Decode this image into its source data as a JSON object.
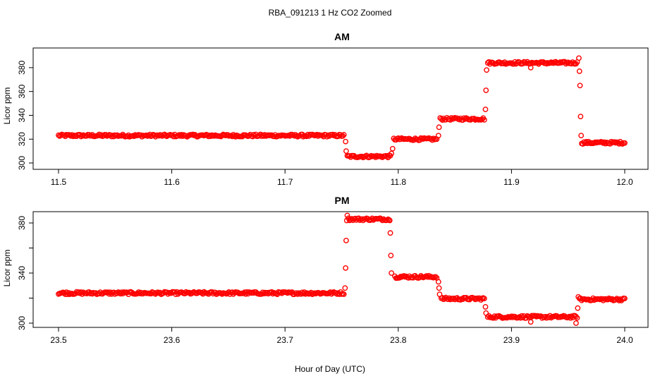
{
  "figure": {
    "title": "RBA_091213  1 Hz CO2 Zoomed",
    "xlabel": "Hour of Day (UTC)"
  },
  "chart_data": [
    {
      "type": "scatter",
      "title": "AM",
      "ylabel": "Licor ppm",
      "xlim": [
        11.5,
        12.0
      ],
      "ylim": [
        300,
        390
      ],
      "x_ticks": [
        "11.5",
        "11.6",
        "11.7",
        "11.8",
        "11.9",
        "12.0"
      ],
      "x_tick_values": [
        11.5,
        11.6,
        11.7,
        11.8,
        11.9,
        12.0
      ],
      "y_ticks": [
        "300",
        "320",
        "340",
        "360",
        "380"
      ],
      "y_tick_values": [
        300,
        320,
        340,
        360,
        380
      ],
      "color": "#ff0000",
      "marker": "open-circle",
      "segments": [
        {
          "x_start": 11.5,
          "x_end": 11.752,
          "y": 323
        },
        {
          "x_start": 11.755,
          "x_end": 11.793,
          "y": 305.5
        },
        {
          "x_start": 11.796,
          "x_end": 11.834,
          "y": 320
        },
        {
          "x_start": 11.837,
          "x_end": 11.876,
          "y": 337
        },
        {
          "x_start": 11.879,
          "x_end": 11.958,
          "y": 384
        },
        {
          "x_start": 11.962,
          "x_end": 12.0,
          "y": 317
        }
      ],
      "transitions": [
        {
          "x": 11.7535,
          "y": 318
        },
        {
          "x": 11.754,
          "y": 310
        },
        {
          "x": 11.794,
          "y": 308
        },
        {
          "x": 11.795,
          "y": 312
        },
        {
          "x": 11.8355,
          "y": 323
        },
        {
          "x": 11.836,
          "y": 330
        },
        {
          "x": 11.877,
          "y": 345
        },
        {
          "x": 11.8775,
          "y": 361
        },
        {
          "x": 11.878,
          "y": 378
        },
        {
          "x": 11.917,
          "y": 380
        },
        {
          "x": 11.9595,
          "y": 388
        },
        {
          "x": 11.96,
          "y": 377
        },
        {
          "x": 11.9605,
          "y": 365
        },
        {
          "x": 11.961,
          "y": 339
        },
        {
          "x": 11.9615,
          "y": 323
        }
      ]
    },
    {
      "type": "scatter",
      "title": "PM",
      "ylabel": "Licor ppm",
      "xlim": [
        23.5,
        24.0
      ],
      "ylim": [
        296,
        388
      ],
      "x_ticks": [
        "23.5",
        "23.6",
        "23.7",
        "23.8",
        "23.9",
        "24.0"
      ],
      "x_tick_values": [
        23.5,
        23.6,
        23.7,
        23.8,
        23.9,
        24.0
      ],
      "y_ticks": [
        "300",
        "340",
        "380"
      ],
      "y_tick_values": [
        300,
        340,
        380
      ],
      "y_ticks_minor": [
        320,
        360
      ],
      "color": "#ff0000",
      "marker": "open-circle",
      "segments": [
        {
          "x_start": 23.5,
          "x_end": 23.752,
          "y": 324
        },
        {
          "x_start": 23.756,
          "x_end": 23.792,
          "y": 383
        },
        {
          "x_start": 23.797,
          "x_end": 23.834,
          "y": 337
        },
        {
          "x_start": 23.838,
          "x_end": 23.876,
          "y": 319.5
        },
        {
          "x_start": 23.879,
          "x_end": 23.958,
          "y": 305
        },
        {
          "x_start": 23.96,
          "x_end": 24.0,
          "y": 319
        }
      ],
      "transitions": [
        {
          "x": 23.753,
          "y": 328
        },
        {
          "x": 23.7535,
          "y": 344
        },
        {
          "x": 23.754,
          "y": 366
        },
        {
          "x": 23.7545,
          "y": 382
        },
        {
          "x": 23.755,
          "y": 386
        },
        {
          "x": 23.7925,
          "y": 382
        },
        {
          "x": 23.793,
          "y": 372
        },
        {
          "x": 23.7935,
          "y": 354
        },
        {
          "x": 23.794,
          "y": 340
        },
        {
          "x": 23.8355,
          "y": 333
        },
        {
          "x": 23.836,
          "y": 328
        },
        {
          "x": 23.8365,
          "y": 323
        },
        {
          "x": 23.877,
          "y": 313
        },
        {
          "x": 23.8775,
          "y": 308
        },
        {
          "x": 23.917,
          "y": 301
        },
        {
          "x": 23.957,
          "y": 300
        },
        {
          "x": 23.9585,
          "y": 312
        },
        {
          "x": 23.959,
          "y": 321
        }
      ]
    }
  ]
}
